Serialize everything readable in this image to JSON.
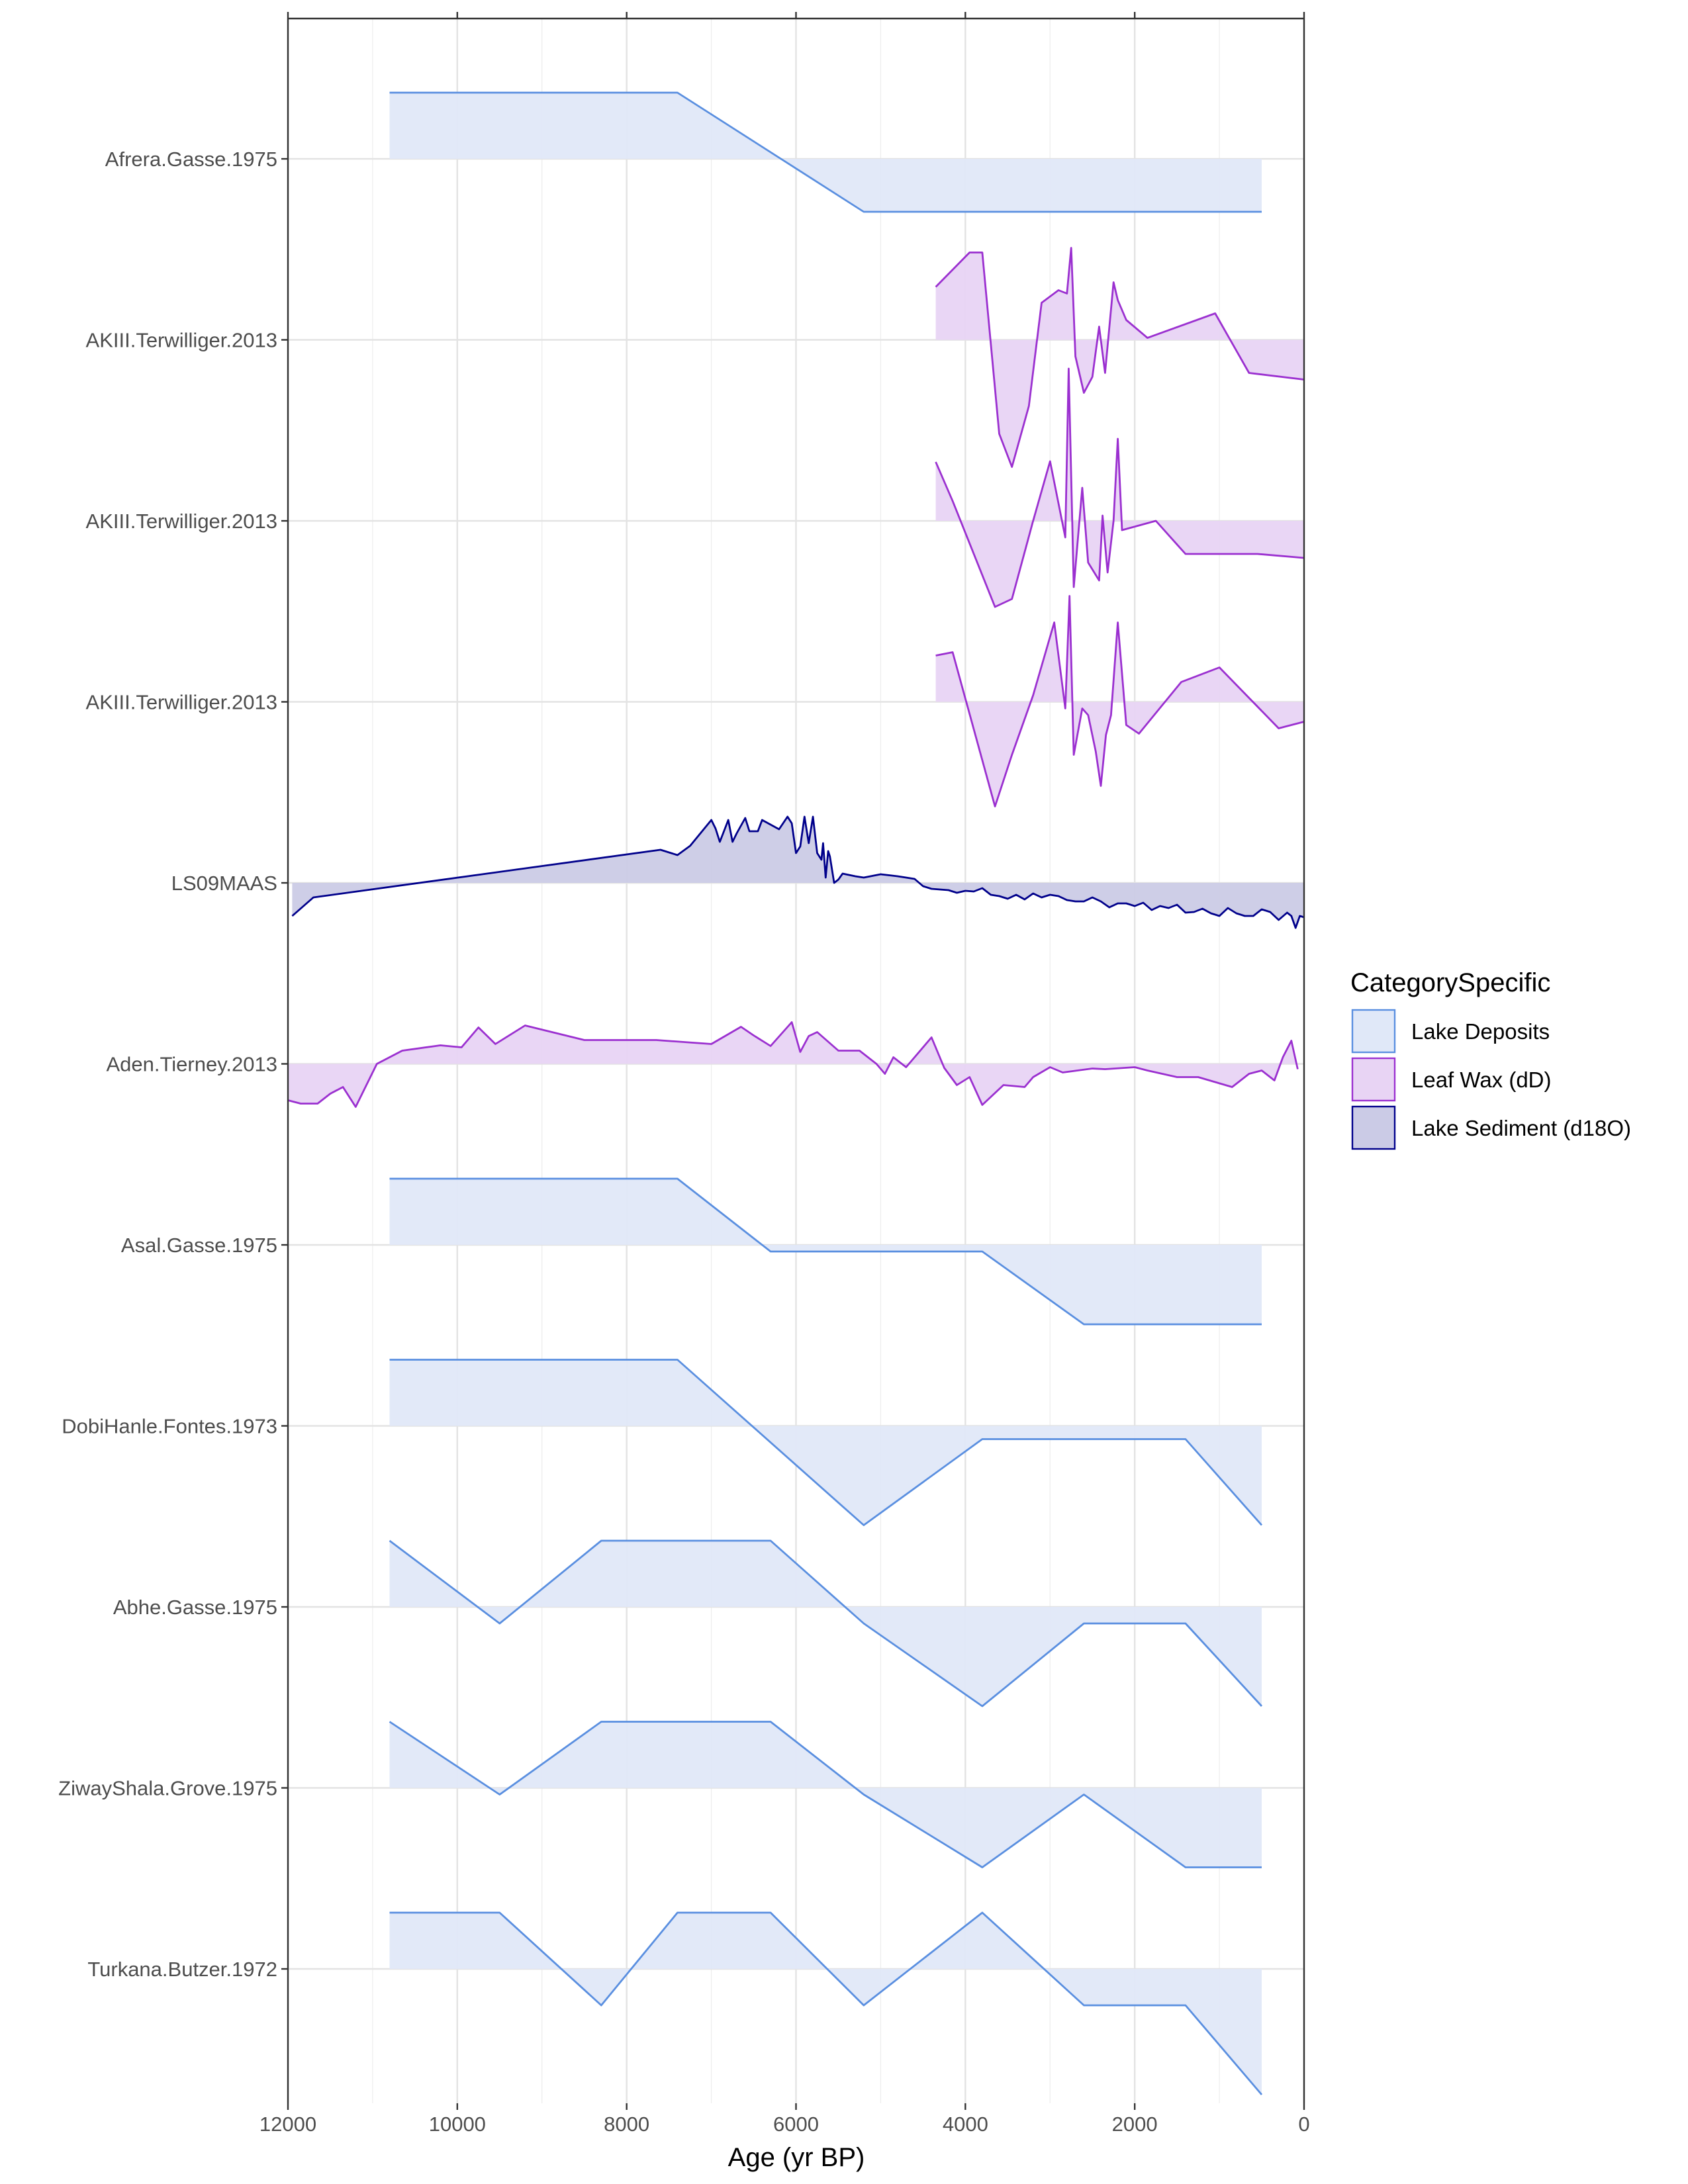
{
  "chart_data": {
    "type": "area",
    "xlabel": "Age (yr BP)",
    "xlim": [
      12000,
      0
    ],
    "x_reversed": true,
    "xticks": [
      12000,
      10000,
      8000,
      6000,
      4000,
      2000,
      0
    ],
    "xtick_labels": [
      "12000",
      "10000",
      "8000",
      "6000",
      "4000",
      "2000",
      "0"
    ],
    "grid": true,
    "legend": {
      "title": "CategorySpecific",
      "placement": "right",
      "entries": [
        {
          "name": "Lake Deposits",
          "line": "#5a8fe0",
          "fill": "#e0e8f8"
        },
        {
          "name": "Leaf Wax (dD)",
          "line": "#9b30d0",
          "fill": "#e8d4f4"
        },
        {
          "name": "Lake Sediment (d18O)",
          "line": "#00008b",
          "fill": "#cbcbe6"
        }
      ]
    },
    "series": [
      {
        "name": "Afrera.Gasse.1975",
        "category": 0,
        "x": [
          10800,
          7400,
          5200,
          500
        ],
        "y": [
          1,
          1,
          -0.8,
          -0.8
        ]
      },
      {
        "name": "AKIII.Terwilliger.2013",
        "category": 1,
        "x": [
          4350,
          3950,
          3800,
          3600,
          3450,
          3250,
          3100,
          2900,
          2800,
          2750,
          2700,
          2600,
          2500,
          2420,
          2350,
          2250,
          2200,
          2100,
          1850,
          1050,
          650,
          0
        ],
        "y": [
          0.8,
          1.32,
          1.32,
          -1.42,
          -1.92,
          -1.0,
          0.56,
          0.75,
          0.7,
          1.39,
          -0.25,
          -0.8,
          -0.56,
          0.2,
          -0.5,
          0.87,
          0.6,
          0.3,
          0.03,
          0.4,
          -0.5,
          -0.6
        ]
      },
      {
        "name": "AKIII.Terwilliger.2013",
        "category": 1,
        "x": [
          4350,
          4150,
          3650,
          3450,
          3200,
          3000,
          2820,
          2780,
          2720,
          2620,
          2550,
          2420,
          2380,
          2320,
          2250,
          2200,
          2150,
          1750,
          1400,
          550,
          0
        ],
        "y": [
          0.89,
          0.3,
          -1.3,
          -1.18,
          0.0,
          0.9,
          -0.25,
          2.3,
          -1.0,
          0.5,
          -0.63,
          -0.9,
          0.08,
          -0.78,
          0.0,
          1.24,
          -0.14,
          0.0,
          -0.5,
          -0.5,
          -0.56
        ]
      },
      {
        "name": "AKIII.Terwilliger.2013",
        "category": 1,
        "x": [
          4350,
          4150,
          3650,
          3450,
          3200,
          2950,
          2820,
          2770,
          2720,
          2620,
          2550,
          2460,
          2400,
          2340,
          2280,
          2200,
          2100,
          1950,
          1450,
          1000,
          300,
          0
        ],
        "y": [
          0.7,
          0.75,
          -1.58,
          -0.8,
          0.1,
          1.2,
          -0.1,
          1.6,
          -0.8,
          -0.1,
          -0.2,
          -0.75,
          -1.27,
          -0.5,
          -0.2,
          1.2,
          -0.35,
          -0.48,
          0.3,
          0.52,
          -0.4,
          -0.3
        ]
      },
      {
        "name": "LS09MAAS",
        "category": 2,
        "x": [
          11950,
          11700,
          7600,
          7400,
          7250,
          7000,
          6950,
          6900,
          6800,
          6750,
          6700,
          6600,
          6550,
          6450,
          6400,
          6300,
          6200,
          6100,
          6050,
          6000,
          5950,
          5900,
          5850,
          5800,
          5750,
          5700,
          5680,
          5650,
          5620,
          5600,
          5550,
          5500,
          5450,
          5300,
          5200,
          5000,
          4800,
          4600,
          4500,
          4400,
          4300,
          4200,
          4100,
          4000,
          3900,
          3800,
          3700,
          3600,
          3500,
          3400,
          3300,
          3200,
          3100,
          3000,
          2900,
          2800,
          2700,
          2600,
          2500,
          2400,
          2300,
          2200,
          2100,
          2000,
          1900,
          1800,
          1700,
          1600,
          1500,
          1400,
          1300,
          1200,
          1100,
          1000,
          900,
          800,
          700,
          600,
          500,
          400,
          300,
          200,
          150,
          100,
          50,
          0
        ],
        "y": [
          -0.5,
          -0.22,
          0.5,
          0.42,
          0.56,
          0.95,
          0.82,
          0.62,
          0.95,
          0.62,
          0.75,
          0.98,
          0.78,
          0.78,
          0.95,
          0.88,
          0.81,
          1.0,
          0.9,
          0.45,
          0.55,
          1.0,
          0.6,
          1.0,
          0.45,
          0.35,
          0.6,
          0.08,
          0.48,
          0.4,
          0.0,
          0.05,
          0.14,
          0.1,
          0.08,
          0.13,
          0.1,
          0.06,
          -0.05,
          -0.09,
          -0.1,
          -0.11,
          -0.15,
          -0.12,
          -0.13,
          -0.08,
          -0.18,
          -0.2,
          -0.24,
          -0.18,
          -0.25,
          -0.16,
          -0.22,
          -0.18,
          -0.2,
          -0.26,
          -0.28,
          -0.28,
          -0.22,
          -0.28,
          -0.37,
          -0.31,
          -0.31,
          -0.35,
          -0.3,
          -0.41,
          -0.35,
          -0.38,
          -0.33,
          -0.45,
          -0.44,
          -0.39,
          -0.46,
          -0.5,
          -0.38,
          -0.46,
          -0.5,
          -0.5,
          -0.4,
          -0.44,
          -0.56,
          -0.45,
          -0.5,
          -0.68,
          -0.5,
          -0.52
        ]
      },
      {
        "name": "Aden.Tierney.2013",
        "category": 1,
        "x": [
          12000,
          11850,
          11650,
          11500,
          11350,
          11200,
          10950,
          10650,
          10200,
          9950,
          9750,
          9550,
          9200,
          8500,
          7650,
          7000,
          6650,
          6500,
          6300,
          6050,
          5950,
          5850,
          5750,
          5500,
          5250,
          5050,
          4950,
          4850,
          4700,
          4400,
          4250,
          4100,
          3950,
          3800,
          3550,
          3300,
          3200,
          3000,
          2850,
          2500,
          2350,
          2000,
          1850,
          1500,
          1250,
          850,
          650,
          500,
          350,
          250,
          150,
          75
        ],
        "y": [
          -0.55,
          -0.6,
          -0.6,
          -0.45,
          -0.35,
          -0.65,
          0.0,
          0.2,
          0.28,
          0.25,
          0.55,
          0.3,
          0.58,
          0.36,
          0.36,
          0.3,
          0.56,
          0.43,
          0.27,
          0.63,
          0.18,
          0.42,
          0.48,
          0.2,
          0.2,
          0.0,
          -0.15,
          0.1,
          -0.05,
          0.4,
          -0.06,
          -0.32,
          -0.2,
          -0.62,
          -0.32,
          -0.35,
          -0.2,
          -0.05,
          -0.13,
          -0.07,
          -0.08,
          -0.05,
          -0.1,
          -0.2,
          -0.2,
          -0.35,
          -0.15,
          -0.1,
          -0.25,
          0.1,
          0.35,
          -0.08
        ]
      },
      {
        "name": "Asal.Gasse.1975",
        "category": 0,
        "x": [
          10800,
          7400,
          6300,
          3800,
          2600,
          500
        ],
        "y": [
          1,
          1,
          -0.1,
          -0.1,
          -1.2,
          -1.2
        ]
      },
      {
        "name": "DobiHanle.Fontes.1973",
        "category": 0,
        "x": [
          10800,
          7400,
          5200,
          3800,
          1400,
          500
        ],
        "y": [
          1,
          1,
          -1.5,
          -0.2,
          -0.2,
          -1.5
        ]
      },
      {
        "name": "Abhe.Gasse.1975",
        "category": 0,
        "x": [
          10800,
          9500,
          8300,
          6300,
          5200,
          3800,
          2600,
          1400,
          500
        ],
        "y": [
          1,
          -0.25,
          1,
          1,
          -0.25,
          -1.5,
          -0.25,
          -0.25,
          -1.5
        ]
      },
      {
        "name": "ZiwayShala.Grove.1975",
        "category": 0,
        "x": [
          10800,
          9500,
          8300,
          6300,
          5200,
          3800,
          2600,
          1400,
          500
        ],
        "y": [
          1,
          -0.1,
          1,
          1,
          -0.1,
          -1.2,
          -0.1,
          -1.2,
          -1.2
        ]
      },
      {
        "name": "Turkana.Butzer.1972",
        "category": 0,
        "x": [
          10800,
          9500,
          8300,
          7400,
          6300,
          5200,
          3800,
          2600,
          1400,
          500
        ],
        "y": [
          0.85,
          0.85,
          -0.55,
          0.85,
          0.85,
          -0.55,
          0.85,
          -0.55,
          -0.55,
          -1.9
        ]
      }
    ]
  }
}
